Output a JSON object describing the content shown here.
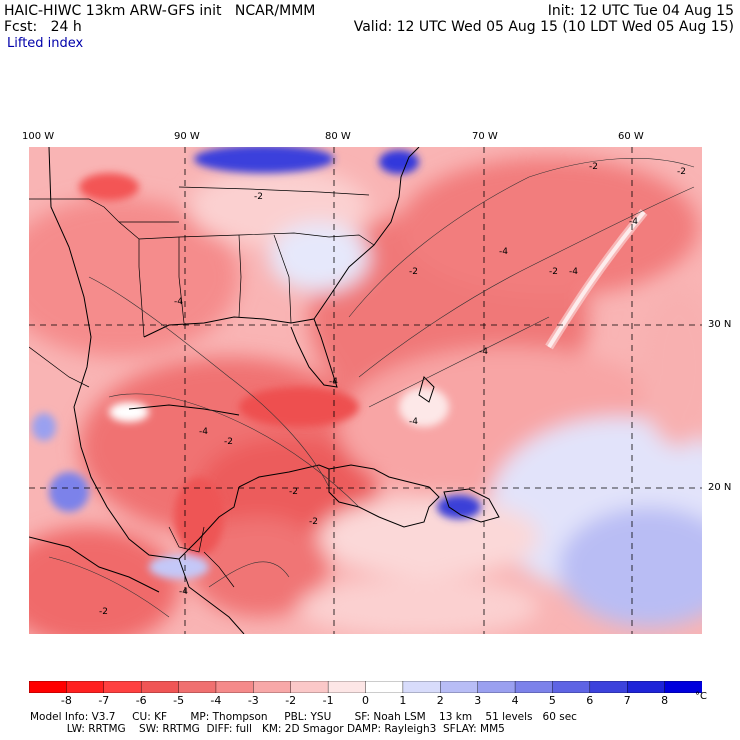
{
  "header": {
    "model_line": "HAIC-HIWC 13km ARW-GFS init   NCAR/MMM",
    "fcst_line": "Fcst:   24 h",
    "field": "Lifted index",
    "init_line": "Init: 12 UTC Tue 04 Aug 15",
    "valid_line": "Valid: 12 UTC Wed 05 Aug 15 (10 LDT Wed 05 Aug 15)"
  },
  "map": {
    "lon_labels": [
      "100 W",
      "90 W",
      "80 W",
      "70 W",
      "60 W"
    ],
    "lat_labels": [
      "30 N",
      "20 N"
    ],
    "region": "Gulf of Mexico, Caribbean, western Atlantic",
    "lon_range": [
      -100,
      -56
    ],
    "lat_range": [
      13,
      36
    ],
    "contour_labels": [
      "-2",
      "-4",
      "-2",
      "-4",
      "-4",
      "-2",
      "-4",
      "-2",
      "-4",
      "-2",
      "-4",
      "-2",
      "-2",
      "-4",
      "-4",
      "-2",
      "-2",
      "-4"
    ]
  },
  "colorbar": {
    "ticks": [
      "-8",
      "-7",
      "-6",
      "-5",
      "-4",
      "-3",
      "-2",
      "-1",
      "0",
      "1",
      "2",
      "3",
      "4",
      "5",
      "6",
      "7",
      "8"
    ],
    "unit": "°C",
    "colors": [
      "#ff0000",
      "#ff2020",
      "#ff4040",
      "#f05555",
      "#f07070",
      "#f58a8a",
      "#f8a8a8",
      "#fbc8c8",
      "#fde6e6",
      "#ffffff",
      "#d8dcfb",
      "#b8bdf6",
      "#9aa0f0",
      "#7c82ea",
      "#5e64e4",
      "#3c42dc",
      "#1e24d8",
      "#0000dd"
    ]
  },
  "footer": {
    "line1": "Model Info: V3.7     CU: KF       MP: Thompson     PBL: YSU       SF: Noah LSM    13 km    51 levels   60 sec",
    "line2": "           LW: RRTMG    SW: RRTMG  DIFF: full   KM: 2D Smagor DAMP: Rayleigh3  SFLAY: MM5"
  }
}
